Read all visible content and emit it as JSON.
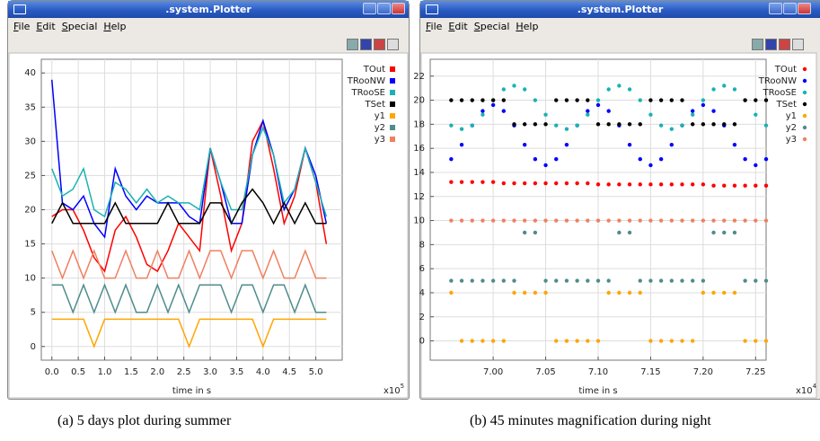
{
  "windows": [
    {
      "title": ".system.Plotter",
      "menu": [
        "File",
        "Edit",
        "Special",
        "Help"
      ]
    },
    {
      "title": ".system.Plotter",
      "menu": [
        "File",
        "Edit",
        "Special",
        "Help"
      ]
    }
  ],
  "chart_data": [
    {
      "type": "line",
      "xlabel": "time in s",
      "x_multiplier": "x10",
      "x_exponent": "5",
      "xlim": [
        -0.2,
        5.5
      ],
      "ylim": [
        -2,
        42
      ],
      "grid": true,
      "xticks": [
        {
          "value": 0,
          "label": "0.0"
        },
        0.5,
        {
          "value": 1,
          "label": "1.0"
        },
        1.5,
        {
          "value": 2,
          "label": "2.0"
        },
        2.5,
        {
          "value": 3,
          "label": "3.0"
        },
        3.5,
        {
          "value": 4,
          "label": "4.0"
        },
        4.5,
        {
          "value": 5,
          "label": "5.0"
        }
      ],
      "yticks": [
        0,
        5,
        10,
        15,
        20,
        25,
        30,
        35,
        40
      ],
      "x": [
        0,
        0.2,
        0.4,
        0.6,
        0.8,
        1,
        1.2,
        1.4,
        1.6,
        1.8,
        2,
        2.2,
        2.4,
        2.6,
        2.8,
        3,
        3.2,
        3.4,
        3.6,
        3.8,
        4,
        4.2,
        4.4,
        4.6,
        4.8,
        5,
        5.2
      ],
      "series": [
        {
          "name": "TOut",
          "color": "#ff0000",
          "values": [
            19,
            20,
            20,
            17,
            13,
            11,
            17,
            19,
            16,
            12,
            11,
            14,
            18,
            16,
            14,
            29,
            22,
            14,
            18,
            30,
            33,
            26,
            18,
            22,
            29,
            24,
            15
          ]
        },
        {
          "name": "TRooNW",
          "color": "#0000ff",
          "values": [
            39,
            21,
            20,
            22,
            18,
            16,
            26,
            22,
            20,
            22,
            21,
            21,
            21,
            19,
            18,
            29,
            24,
            18,
            18,
            28,
            33,
            28,
            20,
            23,
            29,
            25,
            18
          ]
        },
        {
          "name": "TRooSE",
          "color": "#1ab2b2",
          "values": [
            26,
            22,
            23,
            26,
            20,
            19,
            24,
            23,
            21,
            23,
            21,
            22,
            21,
            21,
            20,
            29,
            24,
            20,
            20,
            28,
            32,
            28,
            21,
            23,
            29,
            24,
            19
          ]
        },
        {
          "name": "TSet",
          "color": "#000000",
          "values": [
            18,
            21,
            18,
            18,
            18,
            18,
            21,
            18,
            18,
            18,
            18,
            21,
            18,
            18,
            18,
            21,
            21,
            18,
            21,
            23,
            21,
            18,
            21,
            18,
            21,
            18,
            18
          ]
        },
        {
          "name": "y1",
          "color": "#ffa500",
          "values": [
            4,
            4,
            4,
            4,
            0,
            4,
            4,
            4,
            4,
            4,
            4,
            4,
            4,
            0,
            4,
            4,
            4,
            4,
            4,
            4,
            0,
            4,
            4,
            4,
            4,
            4,
            4
          ]
        },
        {
          "name": "y2",
          "color": "#508c8c",
          "values": [
            9,
            9,
            5,
            9,
            5,
            9,
            5,
            9,
            5,
            5,
            9,
            5,
            9,
            5,
            9,
            9,
            9,
            5,
            9,
            9,
            5,
            9,
            9,
            5,
            9,
            5,
            5
          ]
        },
        {
          "name": "y3",
          "color": "#f08060",
          "values": [
            14,
            10,
            14,
            10,
            14,
            10,
            10,
            14,
            10,
            10,
            14,
            10,
            10,
            14,
            10,
            14,
            14,
            10,
            14,
            14,
            10,
            14,
            10,
            10,
            14,
            10,
            10
          ]
        }
      ]
    },
    {
      "type": "scatter",
      "xlabel": "time in s",
      "x_multiplier": "x10",
      "x_exponent": "4",
      "xlim": [
        6.94,
        7.26
      ],
      "ylim": [
        -1.6,
        23.4
      ],
      "grid": true,
      "xticks": [
        {
          "value": 7,
          "label": "7.00"
        },
        7.05,
        {
          "value": 7.1,
          "label": "7.10"
        },
        7.15,
        {
          "value": 7.2,
          "label": "7.20"
        },
        7.25
      ],
      "yticks": [
        0,
        2,
        4,
        6,
        8,
        10,
        12,
        14,
        16,
        18,
        20,
        22
      ],
      "x": [
        6.96,
        6.97,
        6.98,
        6.99,
        7,
        7.01,
        7.02,
        7.03,
        7.04,
        7.05,
        7.06,
        7.07,
        7.08,
        7.09,
        7.1,
        7.11,
        7.12,
        7.13,
        7.14,
        7.15,
        7.16,
        7.17,
        7.18,
        7.19,
        7.2,
        7.21,
        7.22,
        7.23,
        7.24,
        7.25,
        7.26
      ],
      "series": [
        {
          "name": "TOut",
          "color": "#ff0000",
          "values": [
            13.2,
            13.2,
            13.2,
            13.2,
            13.2,
            13.1,
            13.1,
            13.1,
            13.1,
            13.1,
            13.1,
            13.1,
            13.1,
            13.1,
            13.0,
            13.0,
            13.0,
            13.0,
            13.0,
            13.0,
            13.0,
            13.0,
            13.0,
            13.0,
            13.0,
            12.9,
            12.9,
            12.9,
            12.9,
            12.9,
            12.9
          ]
        },
        {
          "name": "TRooNW",
          "color": "#0000ff",
          "values": [
            15.1,
            16.3,
            17.9,
            19.1,
            19.6,
            19.1,
            17.9,
            16.3,
            15.1,
            14.6,
            15.1,
            16.3,
            17.9,
            19.1,
            19.6,
            19.1,
            17.9,
            16.3,
            15.1,
            14.6,
            15.1,
            16.3,
            17.9,
            19.1,
            19.6,
            19.1,
            17.9,
            16.3,
            15.1,
            14.6,
            15.1
          ]
        },
        {
          "name": "TRooSE",
          "color": "#1ab2b2",
          "values": [
            17.9,
            17.6,
            17.9,
            18.8,
            20.0,
            20.9,
            21.2,
            20.9,
            20.0,
            18.8,
            17.9,
            17.6,
            17.9,
            18.8,
            20.0,
            20.9,
            21.2,
            20.9,
            20.0,
            18.8,
            17.9,
            17.6,
            17.9,
            18.8,
            20.0,
            20.9,
            21.2,
            20.9,
            20.0,
            18.8,
            17.9
          ]
        },
        {
          "name": "TSet",
          "color": "#000000",
          "values": [
            20,
            20,
            20,
            20,
            20,
            20,
            18,
            18,
            18,
            18,
            20,
            20,
            20,
            20,
            18,
            18,
            18,
            18,
            18,
            20,
            20,
            20,
            20,
            18,
            18,
            18,
            18,
            18,
            20,
            20,
            20
          ]
        },
        {
          "name": "y1",
          "color": "#ffa500",
          "values": [
            4,
            0,
            0,
            0,
            0,
            0,
            4,
            4,
            4,
            4,
            0,
            0,
            0,
            0,
            0,
            4,
            4,
            4,
            4,
            0,
            0,
            0,
            0,
            0,
            4,
            4,
            4,
            4,
            0,
            0,
            0
          ]
        },
        {
          "name": "y2",
          "color": "#508c8c",
          "values": [
            5,
            5,
            5,
            5,
            5,
            5,
            5,
            9,
            9,
            5,
            5,
            5,
            5,
            5,
            5,
            5,
            9,
            9,
            5,
            5,
            5,
            5,
            5,
            5,
            5,
            9,
            9,
            9,
            5,
            5,
            5
          ]
        },
        {
          "name": "y3",
          "color": "#f08060",
          "values": [
            10,
            10,
            10,
            10,
            10,
            10,
            10,
            10,
            10,
            10,
            10,
            10,
            10,
            10,
            10,
            10,
            10,
            10,
            10,
            10,
            10,
            10,
            10,
            10,
            10,
            10,
            10,
            10,
            10,
            10,
            10
          ]
        }
      ]
    }
  ],
  "captions": [
    "(a) 5 days plot during summer",
    "(b) 45 minutes magnification during night"
  ]
}
